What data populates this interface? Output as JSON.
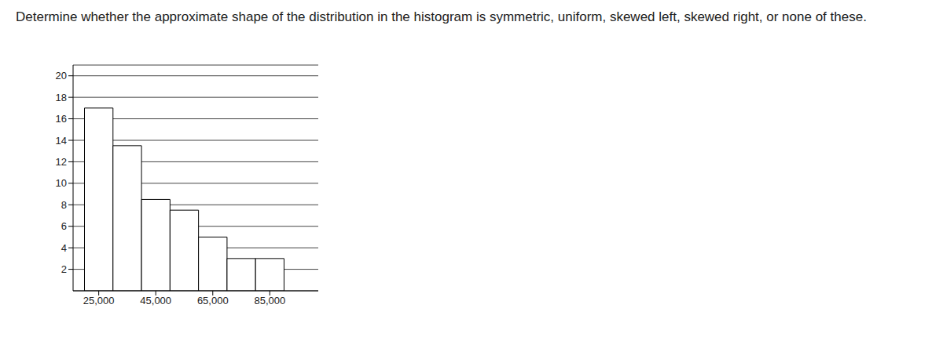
{
  "chart_data": {
    "type": "histogram",
    "title": "Determine whether the approximate shape of the distribution in the histogram is symmetric, uniform, skewed left, skewed right, or none of these.",
    "bins": [
      20000,
      30000,
      40000,
      50000,
      60000,
      70000,
      80000,
      90000
    ],
    "values": [
      17,
      13.5,
      8.5,
      7.5,
      5,
      3,
      3
    ],
    "color": "#ffffff",
    "xlim": [
      16000,
      102000
    ],
    "xticks": [
      {
        "value": 25000,
        "label": "25,000"
      },
      {
        "value": 45000,
        "label": "45,000"
      },
      {
        "value": 65000,
        "label": "65,000"
      },
      {
        "value": 85000,
        "label": "85,000"
      }
    ],
    "ylim": [
      0,
      21
    ],
    "yticks": [
      2,
      4,
      6,
      8,
      10,
      12,
      14,
      16,
      18,
      20
    ],
    "grid": true
  }
}
